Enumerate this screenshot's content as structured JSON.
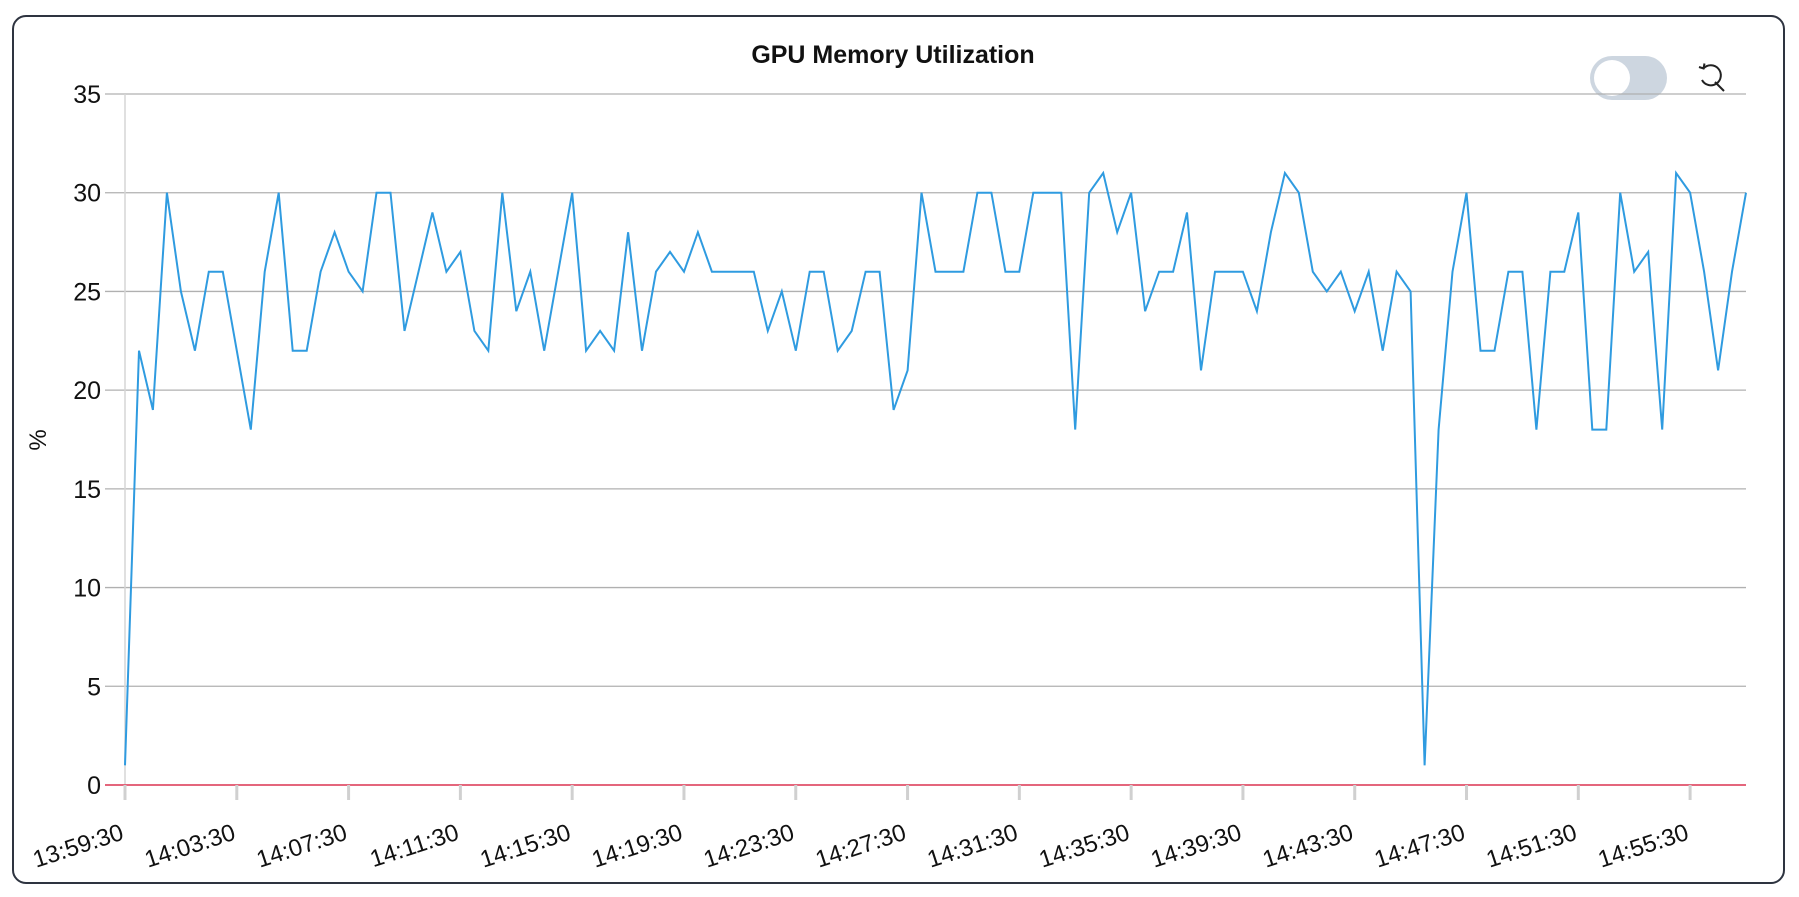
{
  "header": {
    "title": "GPU Memory Utilization"
  },
  "controls": {
    "toggle_on": false,
    "reset_icon": "zoom-reset-icon"
  },
  "colors": {
    "series": "#2f9be0",
    "threshold": "#e0506a",
    "grid": "#b0b0b0",
    "toggle_off": "#cdd6e0"
  },
  "chart_data": {
    "type": "line",
    "title": "GPU Memory Utilization",
    "xlabel": "",
    "ylabel": "%",
    "ylim": [
      0,
      35
    ],
    "yticks": [
      "0",
      "5",
      "10",
      "15",
      "20",
      "25",
      "30",
      "35"
    ],
    "xticks": [
      "13:59:30",
      "14:03:30",
      "14:07:30",
      "14:11:30",
      "14:15:30",
      "14:19:30",
      "14:23:30",
      "14:27:30",
      "14:31:30",
      "14:35:30",
      "14:39:30",
      "14:43:30",
      "14:47:30",
      "14:51:30",
      "14:55:30"
    ],
    "x_start": "13:59:30",
    "x_end": "14:57:30",
    "grid": true,
    "threshold": 0,
    "series": [
      {
        "values": [
          1,
          22,
          19,
          30,
          25,
          22,
          26,
          26,
          22,
          18,
          26,
          30,
          22,
          22,
          26,
          28,
          26,
          25,
          30,
          30,
          23,
          26,
          29,
          26,
          27,
          23,
          22,
          30,
          24,
          26,
          22,
          26,
          30,
          22,
          23,
          22,
          28,
          22,
          26,
          27,
          26,
          28,
          26,
          26,
          26,
          26,
          23,
          25,
          22,
          26,
          26,
          22,
          23,
          26,
          26,
          19,
          21,
          30,
          26,
          26,
          26,
          30,
          30,
          26,
          26,
          30,
          30,
          30,
          18,
          30,
          31,
          28,
          30,
          24,
          26,
          26,
          29,
          21,
          26,
          26,
          26,
          24,
          28,
          31,
          30,
          26,
          25,
          26,
          24,
          26,
          22,
          26,
          25,
          1,
          18,
          26,
          30,
          22,
          22,
          26,
          26,
          18,
          26,
          26,
          29,
          18,
          18,
          30,
          26,
          27,
          18,
          31,
          30,
          26,
          21,
          26,
          30
        ]
      }
    ]
  }
}
